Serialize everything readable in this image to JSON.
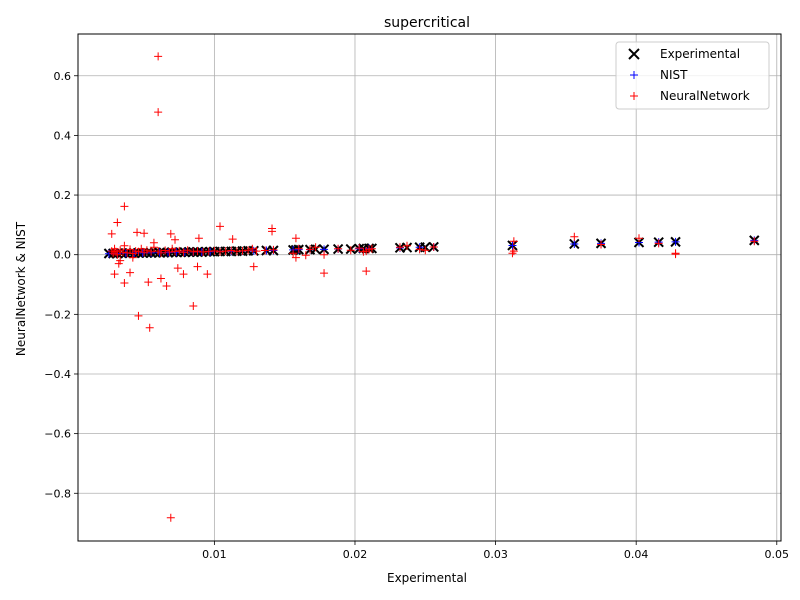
{
  "chart_data": {
    "type": "scatter",
    "title": "supercritical",
    "xlabel": "Experimental",
    "ylabel": "NeuralNetwork & NIST",
    "xlim": [
      0.0003,
      0.0503
    ],
    "ylim": [
      -0.96,
      0.74
    ],
    "xticks": [
      0.01,
      0.02,
      0.03,
      0.04,
      0.05
    ],
    "xtick_labels": [
      "0.01",
      "0.02",
      "0.03",
      "0.04",
      "0.05"
    ],
    "yticks": [
      -0.8,
      -0.6,
      -0.4,
      -0.2,
      0.0,
      0.2,
      0.4,
      0.6
    ],
    "ytick_labels": [
      "−0.8",
      "−0.6",
      "−0.4",
      "−0.2",
      "0.0",
      "0.2",
      "0.4",
      "0.6"
    ],
    "grid": true,
    "legend_position": "top-right",
    "series": [
      {
        "name": "Experimental",
        "marker": "x",
        "color": "#000000",
        "x": [
          0.0025,
          0.0028,
          0.0031,
          0.0034,
          0.0037,
          0.004,
          0.0043,
          0.0046,
          0.0049,
          0.0052,
          0.0055,
          0.0058,
          0.0061,
          0.0064,
          0.0067,
          0.007,
          0.0073,
          0.0076,
          0.0079,
          0.0082,
          0.0085,
          0.0088,
          0.0091,
          0.0094,
          0.0097,
          0.01,
          0.0104,
          0.0108,
          0.0112,
          0.0116,
          0.012,
          0.0124,
          0.0128,
          0.0137,
          0.0142,
          0.0156,
          0.0158,
          0.016,
          0.0168,
          0.0172,
          0.0178,
          0.0188,
          0.0197,
          0.0203,
          0.0206,
          0.021,
          0.0212,
          0.0232,
          0.0237,
          0.0246,
          0.025,
          0.0256,
          0.0312,
          0.0356,
          0.0375,
          0.0402,
          0.0416,
          0.0428,
          0.0484
        ],
        "y": [
          0.004,
          0.004,
          0.004,
          0.005,
          0.005,
          0.005,
          0.005,
          0.006,
          0.006,
          0.006,
          0.006,
          0.007,
          0.007,
          0.007,
          0.007,
          0.008,
          0.008,
          0.008,
          0.008,
          0.009,
          0.009,
          0.009,
          0.009,
          0.01,
          0.01,
          0.01,
          0.011,
          0.011,
          0.011,
          0.012,
          0.012,
          0.013,
          0.013,
          0.014,
          0.014,
          0.016,
          0.016,
          0.017,
          0.017,
          0.018,
          0.018,
          0.019,
          0.019,
          0.02,
          0.021,
          0.021,
          0.021,
          0.023,
          0.024,
          0.025,
          0.025,
          0.026,
          0.031,
          0.036,
          0.038,
          0.041,
          0.042,
          0.043,
          0.048
        ]
      },
      {
        "name": "NIST",
        "marker": "+",
        "color": "#0000ff",
        "x": [
          0.0025,
          0.0031,
          0.0037,
          0.0043,
          0.0049,
          0.0055,
          0.0061,
          0.0067,
          0.0073,
          0.0079,
          0.0085,
          0.0091,
          0.0097,
          0.0104,
          0.0112,
          0.012,
          0.0128,
          0.0137,
          0.0142,
          0.0156,
          0.016,
          0.0168,
          0.0178,
          0.0188,
          0.0203,
          0.021,
          0.0232,
          0.0246,
          0.0256,
          0.0312,
          0.0356,
          0.0375,
          0.0402,
          0.0416,
          0.0428,
          0.0484
        ],
        "y": [
          0.003,
          0.004,
          0.005,
          0.005,
          0.006,
          0.006,
          0.007,
          0.007,
          0.008,
          0.008,
          0.009,
          0.009,
          0.01,
          0.011,
          0.011,
          0.012,
          0.013,
          0.014,
          0.014,
          0.016,
          0.017,
          0.017,
          0.018,
          0.019,
          0.02,
          0.021,
          0.023,
          0.025,
          0.026,
          0.031,
          0.036,
          0.038,
          0.041,
          0.042,
          0.043,
          0.048
        ]
      },
      {
        "name": "NeuralNetwork",
        "marker": "+",
        "color": "#ff0000",
        "x": [
          0.0027,
          0.0028,
          0.0029,
          0.003,
          0.0031,
          0.0033,
          0.0035,
          0.0036,
          0.0038,
          0.004,
          0.0042,
          0.0044,
          0.0046,
          0.0048,
          0.005,
          0.0052,
          0.0055,
          0.0057,
          0.006,
          0.0062,
          0.0065,
          0.0068,
          0.007,
          0.0072,
          0.0075,
          0.0078,
          0.0081,
          0.0085,
          0.0088,
          0.0092,
          0.0096,
          0.01,
          0.0104,
          0.0108,
          0.0112,
          0.0116,
          0.012,
          0.0124,
          0.0127,
          0.013,
          0.0136,
          0.0142,
          0.0156,
          0.0158,
          0.016,
          0.0168,
          0.0172,
          0.0178,
          0.0188,
          0.0197,
          0.0203,
          0.0206,
          0.0208,
          0.021,
          0.0212,
          0.0232,
          0.0237,
          0.0246,
          0.025,
          0.0256,
          0.0312,
          0.0313,
          0.0356,
          0.0375,
          0.0402,
          0.0416,
          0.0428,
          0.0484,
          0.006,
          0.006,
          0.0036,
          0.0031,
          0.0104,
          0.0141,
          0.0141,
          0.0113,
          0.0045,
          0.005,
          0.0089,
          0.0069,
          0.0036,
          0.004,
          0.0053,
          0.0062,
          0.0066,
          0.0078,
          0.0095,
          0.0046,
          0.0029,
          0.0032,
          0.0054,
          0.0074,
          0.0085,
          0.0128,
          0.0178,
          0.0208,
          0.0158,
          0.0165,
          0.0428,
          0.0313,
          0.0027,
          0.0033,
          0.0042,
          0.0057,
          0.0072,
          0.0088
        ],
        "y": [
          0.012,
          0.005,
          0.02,
          0.01,
          0.0,
          0.015,
          0.008,
          0.03,
          0.006,
          0.018,
          0.004,
          0.012,
          0.01,
          0.02,
          0.008,
          0.015,
          0.01,
          0.025,
          0.012,
          0.006,
          0.014,
          0.009,
          0.02,
          0.011,
          0.013,
          0.008,
          0.015,
          0.01,
          0.012,
          0.009,
          0.011,
          0.013,
          0.01,
          0.012,
          0.014,
          0.011,
          0.013,
          0.015,
          0.02,
          0.012,
          0.014,
          0.016,
          0.005,
          0.055,
          0.02,
          0.018,
          0.025,
          0.0,
          0.02,
          0.015,
          0.022,
          0.01,
          0.012,
          0.018,
          0.02,
          0.025,
          0.03,
          0.018,
          0.015,
          0.026,
          0.005,
          0.045,
          0.06,
          0.034,
          0.055,
          0.038,
          0.005,
          0.045,
          0.665,
          0.478,
          0.162,
          0.108,
          0.095,
          0.088,
          0.078,
          0.052,
          0.075,
          0.072,
          0.055,
          0.07,
          -0.095,
          -0.06,
          -0.092,
          -0.08,
          -0.105,
          -0.065,
          -0.065,
          -0.205,
          -0.065,
          -0.03,
          -0.245,
          -0.045,
          -0.172,
          -0.04,
          -0.062,
          -0.055,
          -0.01,
          -0.002,
          0.002,
          0.012,
          0.07,
          -0.02,
          -0.01,
          0.04,
          0.05,
          -0.04
        ],
        "x_extra": [
          0.0069
        ],
        "y_extra": [
          -0.882
        ]
      }
    ]
  }
}
